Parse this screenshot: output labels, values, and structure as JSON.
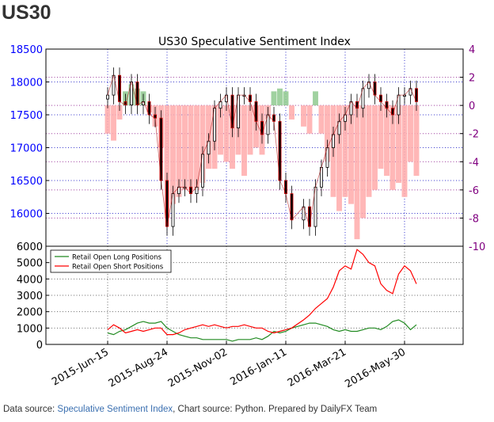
{
  "page": {
    "heading": "US30",
    "footer": {
      "prefix": "Data source: ",
      "link": "Speculative Sentiment Index",
      "suffix": ", Chart source: Python. Prepared by DailyFX Team"
    }
  },
  "colors": {
    "price_axis": "#0000ff",
    "ssi_axis": "#800080",
    "long_line": "#228b22",
    "short_line": "#ff0000",
    "ssi_positive_fill": "#8fc98f",
    "ssi_negative_fill": "#ffaaaa",
    "grid_blue": "#3333cc",
    "grid_purple": "#993399"
  },
  "chart_data": [
    {
      "type": "candlestick",
      "title": "US30 Speculative Sentiment Index",
      "y_ticks": [
        "18500",
        "18000",
        "17500",
        "17000",
        "16500",
        "16000"
      ],
      "ylim": [
        15500,
        18500
      ],
      "secondary_y_ticks": [
        "4",
        "2",
        "0",
        "-2",
        "-4",
        "-6",
        "-8",
        "-10"
      ],
      "secondary_ylim": [
        -10,
        4
      ],
      "x_ticks": [
        "2015-Jun-15",
        "2015-Aug-24",
        "2015-Nov-02",
        "2016-Jan-11",
        "2016-Mar-21",
        "2016-May-30"
      ],
      "grid": true,
      "price_points": [
        [
          "2015-06-15",
          17800
        ],
        [
          "2015-06-22",
          18100
        ],
        [
          "2015-06-29",
          17700
        ],
        [
          "2015-07-06",
          17650
        ],
        [
          "2015-07-13",
          18000
        ],
        [
          "2015-07-20",
          17650
        ],
        [
          "2015-07-27",
          17700
        ],
        [
          "2015-08-03",
          17500
        ],
        [
          "2015-08-10",
          17450
        ],
        [
          "2015-08-17",
          16500
        ],
        [
          "2015-08-24",
          15800
        ],
        [
          "2015-08-31",
          16300
        ],
        [
          "2015-09-07",
          16400
        ],
        [
          "2015-09-14",
          16400
        ],
        [
          "2015-09-21",
          16300
        ],
        [
          "2015-09-28",
          16400
        ],
        [
          "2015-10-05",
          16900
        ],
        [
          "2015-10-12",
          17100
        ],
        [
          "2015-10-19",
          17600
        ],
        [
          "2015-10-26",
          17700
        ],
        [
          "2015-11-02",
          17800
        ],
        [
          "2015-11-09",
          17300
        ],
        [
          "2015-11-16",
          17800
        ],
        [
          "2015-11-23",
          17800
        ],
        [
          "2015-11-30",
          17700
        ],
        [
          "2015-12-07",
          17400
        ],
        [
          "2015-12-14",
          17200
        ],
        [
          "2015-12-21",
          17500
        ],
        [
          "2015-12-28",
          17400
        ],
        [
          "2016-01-04",
          16500
        ],
        [
          "2016-01-11",
          16300
        ],
        [
          "2016-01-18",
          15900
        ],
        [
          "2016-02-01",
          16100
        ],
        [
          "2016-02-08",
          15800
        ],
        [
          "2016-02-15",
          16400
        ],
        [
          "2016-02-22",
          16700
        ],
        [
          "2016-02-29",
          17000
        ],
        [
          "2016-03-07",
          17200
        ],
        [
          "2016-03-14",
          17400
        ],
        [
          "2016-03-21",
          17500
        ],
        [
          "2016-03-28",
          17700
        ],
        [
          "2016-04-04",
          17600
        ],
        [
          "2016-04-11",
          17900
        ],
        [
          "2016-04-18",
          18000
        ],
        [
          "2016-04-25",
          17800
        ],
        [
          "2016-05-02",
          17700
        ],
        [
          "2016-05-09",
          17600
        ],
        [
          "2016-05-16",
          17500
        ],
        [
          "2016-05-23",
          17800
        ],
        [
          "2016-05-30",
          17800
        ],
        [
          "2016-06-06",
          17900
        ],
        [
          "2016-06-13",
          17700
        ]
      ],
      "ssi_points": [
        [
          "2015-06-15",
          -2.0
        ],
        [
          "2015-06-22",
          -2.5
        ],
        [
          "2015-06-29",
          -1.0
        ],
        [
          "2015-07-06",
          1.0
        ],
        [
          "2015-07-13",
          1.5
        ],
        [
          "2015-07-20",
          1.2
        ],
        [
          "2015-07-27",
          1.0
        ],
        [
          "2015-08-03",
          -0.5
        ],
        [
          "2015-08-10",
          -1.5
        ],
        [
          "2015-08-17",
          -3.0
        ],
        [
          "2015-08-24",
          -8.0
        ],
        [
          "2015-08-31",
          -7.0
        ],
        [
          "2015-09-07",
          -6.5
        ],
        [
          "2015-09-14",
          -6.0
        ],
        [
          "2015-09-21",
          -6.0
        ],
        [
          "2015-09-28",
          -6.0
        ],
        [
          "2015-10-05",
          -5.5
        ],
        [
          "2015-10-12",
          -4.5
        ],
        [
          "2015-10-19",
          -4.5
        ],
        [
          "2015-10-26",
          -3.5
        ],
        [
          "2015-11-02",
          -4.0
        ],
        [
          "2015-11-09",
          -4.5
        ],
        [
          "2015-11-16",
          -3.5
        ],
        [
          "2015-11-23",
          -5.0
        ],
        [
          "2015-11-30",
          -3.5
        ],
        [
          "2015-12-07",
          -3.0
        ],
        [
          "2015-12-14",
          -3.5
        ],
        [
          "2015-12-21",
          -1.0
        ],
        [
          "2015-12-28",
          1.0
        ],
        [
          "2016-01-04",
          1.2
        ],
        [
          "2016-01-11",
          1.0
        ],
        [
          "2016-01-18",
          -1.0
        ],
        [
          "2016-02-01",
          -1.5
        ],
        [
          "2016-02-08",
          -2.0
        ],
        [
          "2016-02-15",
          1.0
        ],
        [
          "2016-02-22",
          -2.0
        ],
        [
          "2016-02-29",
          -4.0
        ],
        [
          "2016-03-07",
          -6.5
        ],
        [
          "2016-03-14",
          -7.5
        ],
        [
          "2016-03-21",
          -6.5
        ],
        [
          "2016-03-28",
          -7.0
        ],
        [
          "2016-04-04",
          -9.5
        ],
        [
          "2016-04-11",
          -8.0
        ],
        [
          "2016-04-18",
          -6.5
        ],
        [
          "2016-04-25",
          -6.0
        ],
        [
          "2016-05-02",
          -4.5
        ],
        [
          "2016-05-09",
          -5.0
        ],
        [
          "2016-05-16",
          -6.0
        ],
        [
          "2016-05-23",
          -5.5
        ],
        [
          "2016-05-30",
          -6.5
        ],
        [
          "2016-06-06",
          -4.0
        ],
        [
          "2016-06-13",
          -5.0
        ]
      ]
    },
    {
      "type": "line",
      "y_ticks": [
        "6000",
        "5000",
        "4000",
        "3000",
        "2000",
        "1000",
        "0"
      ],
      "ylim": [
        0,
        6000
      ],
      "grid": true,
      "legend_position": "top-left",
      "series": [
        {
          "name": "Retail Open Long Positions",
          "points": [
            [
              "2015-06-15",
              700
            ],
            [
              "2015-06-22",
              600
            ],
            [
              "2015-06-29",
              800
            ],
            [
              "2015-07-06",
              900
            ],
            [
              "2015-07-13",
              1100
            ],
            [
              "2015-07-20",
              1300
            ],
            [
              "2015-07-27",
              1400
            ],
            [
              "2015-08-03",
              1300
            ],
            [
              "2015-08-10",
              1300
            ],
            [
              "2015-08-17",
              1400
            ],
            [
              "2015-08-24",
              1000
            ],
            [
              "2015-08-31",
              800
            ],
            [
              "2015-09-07",
              600
            ],
            [
              "2015-09-14",
              500
            ],
            [
              "2015-09-21",
              400
            ],
            [
              "2015-09-28",
              400
            ],
            [
              "2015-10-05",
              300
            ],
            [
              "2015-10-12",
              300
            ],
            [
              "2015-10-19",
              300
            ],
            [
              "2015-10-26",
              300
            ],
            [
              "2015-11-02",
              300
            ],
            [
              "2015-11-09",
              200
            ],
            [
              "2015-11-16",
              300
            ],
            [
              "2015-11-23",
              300
            ],
            [
              "2015-11-30",
              300
            ],
            [
              "2015-12-07",
              400
            ],
            [
              "2015-12-14",
              300
            ],
            [
              "2015-12-21",
              500
            ],
            [
              "2015-12-28",
              800
            ],
            [
              "2016-01-04",
              700
            ],
            [
              "2016-01-11",
              800
            ],
            [
              "2016-01-18",
              1000
            ],
            [
              "2016-02-01",
              1200
            ],
            [
              "2016-02-08",
              1300
            ],
            [
              "2016-02-15",
              1300
            ],
            [
              "2016-02-22",
              1200
            ],
            [
              "2016-02-29",
              1100
            ],
            [
              "2016-03-07",
              900
            ],
            [
              "2016-03-14",
              800
            ],
            [
              "2016-03-21",
              900
            ],
            [
              "2016-03-28",
              800
            ],
            [
              "2016-04-04",
              800
            ],
            [
              "2016-04-11",
              900
            ],
            [
              "2016-04-18",
              1000
            ],
            [
              "2016-04-25",
              1000
            ],
            [
              "2016-05-02",
              900
            ],
            [
              "2016-05-09",
              1100
            ],
            [
              "2016-05-16",
              1400
            ],
            [
              "2016-05-23",
              1500
            ],
            [
              "2016-05-30",
              1300
            ],
            [
              "2016-06-06",
              900
            ],
            [
              "2016-06-13",
              1200
            ]
          ]
        },
        {
          "name": "Retail Open Short Positions",
          "points": [
            [
              "2015-06-15",
              900
            ],
            [
              "2015-06-22",
              1200
            ],
            [
              "2015-06-29",
              1000
            ],
            [
              "2015-07-06",
              700
            ],
            [
              "2015-07-13",
              800
            ],
            [
              "2015-07-20",
              900
            ],
            [
              "2015-07-27",
              800
            ],
            [
              "2015-08-03",
              900
            ],
            [
              "2015-08-10",
              1000
            ],
            [
              "2015-08-17",
              1000
            ],
            [
              "2015-08-24",
              600
            ],
            [
              "2015-08-31",
              600
            ],
            [
              "2015-09-07",
              700
            ],
            [
              "2015-09-14",
              900
            ],
            [
              "2015-09-21",
              1000
            ],
            [
              "2015-09-28",
              1100
            ],
            [
              "2015-10-05",
              1200
            ],
            [
              "2015-10-12",
              1100
            ],
            [
              "2015-10-19",
              1200
            ],
            [
              "2015-10-26",
              1100
            ],
            [
              "2015-11-02",
              1000
            ],
            [
              "2015-11-09",
              1100
            ],
            [
              "2015-11-16",
              1100
            ],
            [
              "2015-11-23",
              1200
            ],
            [
              "2015-11-30",
              1100
            ],
            [
              "2015-12-07",
              1000
            ],
            [
              "2015-12-14",
              1000
            ],
            [
              "2015-12-21",
              800
            ],
            [
              "2015-12-28",
              700
            ],
            [
              "2016-01-04",
              800
            ],
            [
              "2016-01-11",
              900
            ],
            [
              "2016-01-18",
              1000
            ],
            [
              "2016-02-01",
              1500
            ],
            [
              "2016-02-08",
              1800
            ],
            [
              "2016-02-15",
              2200
            ],
            [
              "2016-02-22",
              2500
            ],
            [
              "2016-02-29",
              2800
            ],
            [
              "2016-03-07",
              3500
            ],
            [
              "2016-03-14",
              4500
            ],
            [
              "2016-03-21",
              4800
            ],
            [
              "2016-03-28",
              4600
            ],
            [
              "2016-04-04",
              5800
            ],
            [
              "2016-04-11",
              5500
            ],
            [
              "2016-04-18",
              5000
            ],
            [
              "2016-04-25",
              4800
            ],
            [
              "2016-05-02",
              3700
            ],
            [
              "2016-05-09",
              3300
            ],
            [
              "2016-05-16",
              3100
            ],
            [
              "2016-05-23",
              4300
            ],
            [
              "2016-05-30",
              4800
            ],
            [
              "2016-06-06",
              4500
            ],
            [
              "2016-06-13",
              3700
            ]
          ]
        }
      ]
    }
  ]
}
